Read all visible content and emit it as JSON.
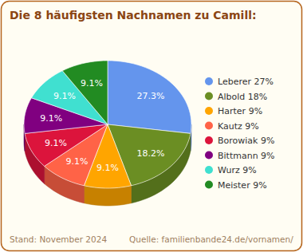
{
  "chart_data": {
    "type": "pie",
    "title": "Die 8 häufigsten Nachnamen zu Camill:",
    "categories": [
      "Leberer 27%",
      "Albold 18%",
      "Harter 9%",
      "Kautz 9%",
      "Borowiak 9%",
      "Bittmann 9%",
      "Wurz 9%",
      "Meister 9%"
    ],
    "values": [
      27.3,
      18.2,
      9.1,
      9.1,
      9.1,
      9.1,
      9.1,
      9.1
    ],
    "value_labels": [
      "27.3%",
      "18.2%",
      "9.1%",
      "9.1%",
      "9.1%",
      "9.1%",
      "9.1%",
      "9.1%"
    ],
    "colors": [
      "#6495ed",
      "#6b8e23",
      "#ffa500",
      "#ff6347",
      "#dc143c",
      "#800080",
      "#40e0d0",
      "#228b22"
    ],
    "data_labels": true,
    "legend": "right",
    "annotations": [
      "Stand: November 2024",
      "Quelle: familienbande24.de/vornamen/"
    ]
  }
}
